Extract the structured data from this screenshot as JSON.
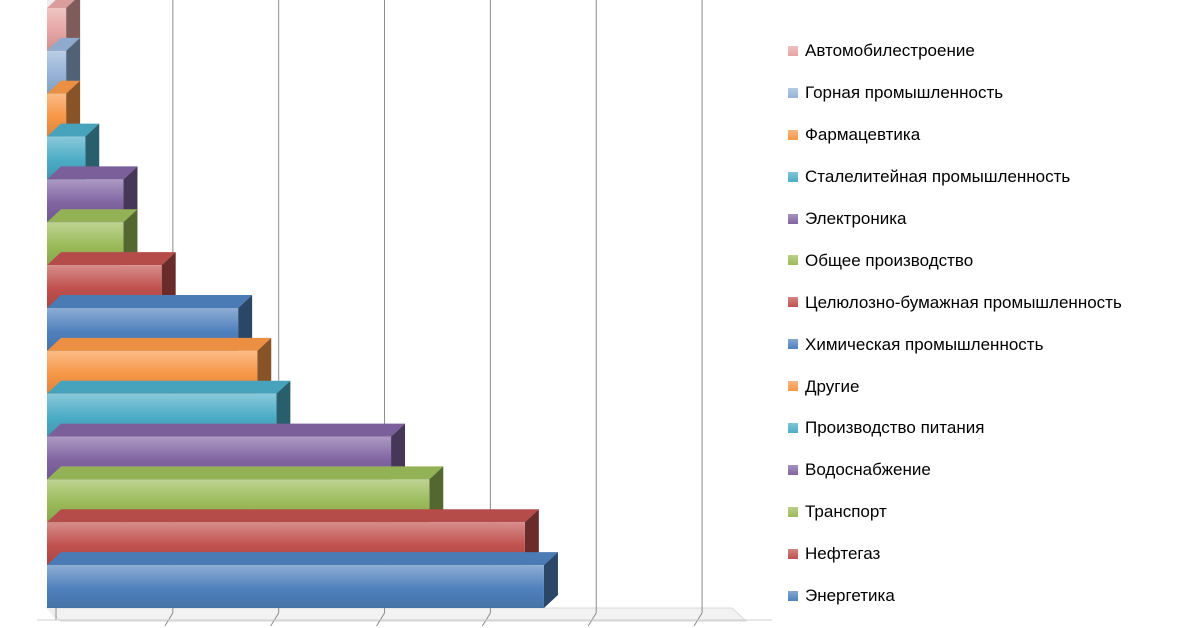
{
  "chart_data": {
    "type": "bar",
    "orientation": "horizontal",
    "style": "3d-stacked-pyramid",
    "categories": [
      "Энергетика",
      "Нефтегаз",
      "Транспорт",
      "Водоснабжение",
      "Производство питания",
      "Другие",
      "Химическая промышленность",
      "Целюлозно-бумажная промышленность",
      "Общее производство",
      "Электроника",
      "Сталелитейная промышленность",
      "Фармацевтика",
      "Горная промышленность",
      "Автомобилестроение"
    ],
    "values": [
      26,
      25,
      20,
      18,
      12,
      11,
      10,
      6,
      4,
      4,
      2,
      1,
      1,
      1
    ],
    "colors": [
      "#4f81bd",
      "#c0504d",
      "#9bbb59",
      "#8064a2",
      "#4bacc6",
      "#f79646",
      "#4f81bd",
      "#c0504d",
      "#9bbb59",
      "#8064a2",
      "#4bacc6",
      "#f79646",
      "#95b3d7",
      "#e6a5a4"
    ],
    "xlim": [
      0,
      31
    ],
    "grid": true,
    "legend_position": "right",
    "legend": [
      {
        "label": "Автомобилестроение",
        "color": "#e6a5a4"
      },
      {
        "label": "Горная промышленность",
        "color": "#95b3d7"
      },
      {
        "label": "Фармацевтика",
        "color": "#f79646"
      },
      {
        "label": "Сталелитейная промышленность",
        "color": "#4bacc6"
      },
      {
        "label": "Электроника",
        "color": "#8064a2"
      },
      {
        "label": "Общее производство",
        "color": "#9bbb59"
      },
      {
        "label": "Целюлозно-бумажная промышленность",
        "color": "#c0504d"
      },
      {
        "label": "Химическая промышленность",
        "color": "#4f81bd"
      },
      {
        "label": "Другие",
        "color": "#f79646"
      },
      {
        "label": "Производство питания",
        "color": "#4bacc6"
      },
      {
        "label": "Водоснабжение",
        "color": "#8064a2"
      },
      {
        "label": "Транспорт",
        "color": "#9bbb59"
      },
      {
        "label": "Нефтегаз",
        "color": "#c0504d"
      },
      {
        "label": "Энергетика",
        "color": "#4f81bd"
      }
    ]
  }
}
